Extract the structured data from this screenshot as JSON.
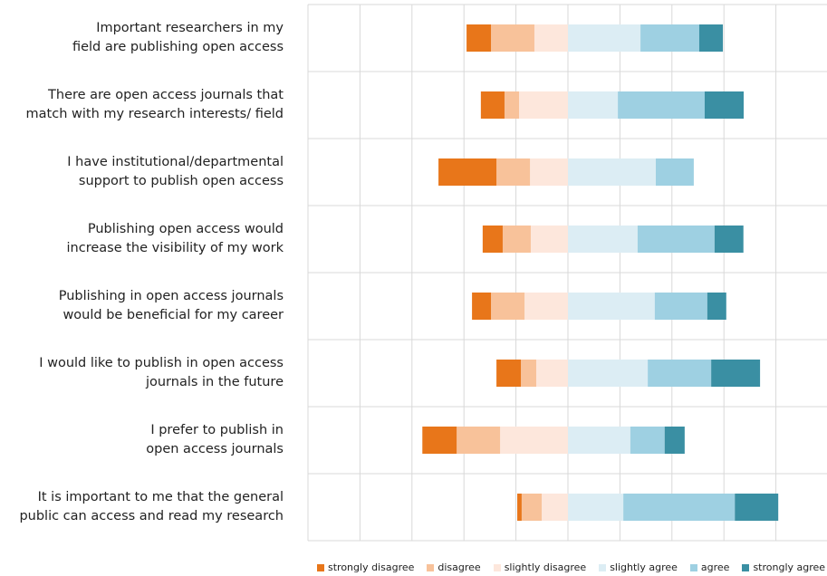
{
  "chart_data": {
    "type": "diverging_bar",
    "categories": [
      "Important researchers in my\nfield are publishing open access",
      "There are open access journals that\nmatch with my research interests/ field",
      "I have institutional/departmental\nsupport to publish open access",
      "Publishing open access would\nincrease the visibility of my work",
      "Publishing in open access journals\nwould be beneficial for my career",
      "I would like to publish in open access\njournals in the future",
      "I prefer to publish in\nopen access journals",
      "It is important to me that the general\npublic can access and read my research"
    ],
    "series": [
      {
        "name": "strongly disagree",
        "color": "#e8761a",
        "values": [
          9.4,
          9.1,
          22.3,
          7.7,
          7.3,
          9.4,
          13.2,
          1.7
        ]
      },
      {
        "name": "disagree",
        "color": "#f8c29a",
        "values": [
          16.7,
          5.6,
          12.9,
          10.8,
          12.9,
          5.9,
          16.7,
          7.7
        ]
      },
      {
        "name": "slightly disagree",
        "color": "#fde7dc",
        "values": [
          12.9,
          18.8,
          14.6,
          14.3,
          16.7,
          12.2,
          26.1,
          10.1
        ]
      },
      {
        "name": "slightly agree",
        "color": "#dcedf4",
        "values": [
          27.9,
          19.2,
          33.8,
          26.8,
          33.4,
          30.7,
          24.0,
          21.3
        ]
      },
      {
        "name": "agree",
        "color": "#9ed0e2",
        "values": [
          22.6,
          33.4,
          14.6,
          29.6,
          20.2,
          24.4,
          13.2,
          42.9
        ]
      },
      {
        "name": "strongly agree",
        "color": "#3a8fa3",
        "values": [
          9.1,
          15.0,
          0,
          11.1,
          7.3,
          18.8,
          7.7,
          16.7
        ]
      }
    ],
    "xlim": [
      -100,
      100
    ],
    "xticks": [
      -100,
      -80,
      -60,
      -40,
      -20,
      0,
      20,
      40,
      60,
      80,
      100
    ],
    "grid": true
  }
}
